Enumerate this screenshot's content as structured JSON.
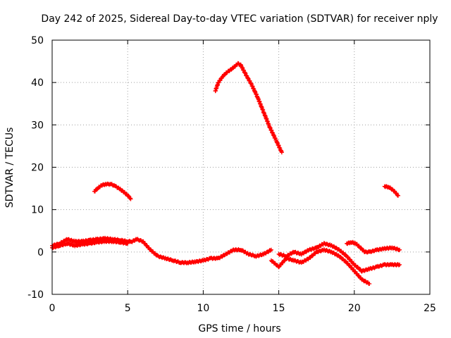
{
  "chart_data": {
    "type": "scatter",
    "title": "Day 242 of 2025, Sidereal Day-to-day VTEC variation (SDTVAR) for receiver nply",
    "xlabel": "GPS time / hours",
    "ylabel": "SDTVAR / TECUs",
    "xlim": [
      0,
      25
    ],
    "ylim": [
      -10,
      50
    ],
    "x_ticks": [
      0,
      5,
      10,
      15,
      20,
      25
    ],
    "y_ticks": [
      -10,
      0,
      10,
      20,
      30,
      40,
      50
    ],
    "x_tick_labels": [
      "0",
      "5",
      "10",
      "15",
      "20",
      "25"
    ],
    "y_tick_labels": [
      "-10",
      "0",
      "10",
      "20",
      "30",
      "40",
      "50"
    ],
    "grid": true,
    "legend": "none",
    "marker_color": "#ff0000",
    "series": [
      {
        "name": "arc-baseline-upper",
        "x": [
          0.0,
          0.5,
          1.0,
          1.5,
          2.0,
          2.5,
          3.0,
          3.5,
          4.0,
          4.5,
          5.0,
          5.3,
          5.6,
          6.0,
          6.5,
          7.0,
          7.5,
          8.0,
          8.5,
          9.0,
          9.5,
          10.0,
          10.5,
          11.0,
          11.5,
          12.0,
          12.5,
          13.0,
          13.5,
          14.0,
          14.5
        ],
        "y": [
          1.5,
          2.0,
          3.0,
          2.5,
          2.5,
          2.8,
          3.0,
          3.2,
          3.0,
          2.8,
          2.5,
          2.5,
          3.0,
          2.5,
          0.5,
          -1.0,
          -1.5,
          -2.0,
          -2.5,
          -2.5,
          -2.3,
          -2.0,
          -1.5,
          -1.5,
          -0.5,
          0.5,
          0.5,
          -0.5,
          -1.0,
          -0.5,
          0.5
        ]
      },
      {
        "name": "arc-baseline-lower",
        "x": [
          0.0,
          0.5,
          1.0,
          1.5,
          2.0,
          2.5,
          3.0,
          3.5,
          4.0,
          4.5,
          5.0
        ],
        "y": [
          1.0,
          1.5,
          2.0,
          1.5,
          1.8,
          2.0,
          2.3,
          2.5,
          2.5,
          2.3,
          2.0
        ]
      },
      {
        "name": "arc-morning-bump",
        "x": [
          2.8,
          3.0,
          3.3,
          3.6,
          3.9,
          4.2,
          4.5,
          4.8,
          5.1,
          5.2
        ],
        "y": [
          14.3,
          15.0,
          15.8,
          16.0,
          16.0,
          15.5,
          14.8,
          14.0,
          13.0,
          12.5
        ]
      },
      {
        "name": "arc-noon-peak",
        "x": [
          10.8,
          11.0,
          11.3,
          11.6,
          12.0,
          12.3,
          12.5,
          12.8,
          13.2,
          13.6,
          14.0,
          14.4,
          14.8,
          15.2
        ],
        "y": [
          38.0,
          40.0,
          41.5,
          42.5,
          43.5,
          44.5,
          44.0,
          42.0,
          39.5,
          36.5,
          33.0,
          29.5,
          26.5,
          23.5
        ]
      },
      {
        "name": "arc-afternoon-low",
        "x": [
          14.5,
          15.0,
          15.5,
          16.0,
          16.5,
          17.0,
          17.5,
          18.0,
          18.5,
          19.0,
          19.5,
          20.0,
          20.5,
          21.0
        ],
        "y": [
          -2.0,
          -3.5,
          -1.5,
          -2.0,
          -2.5,
          -1.5,
          0.0,
          0.5,
          0.0,
          -1.0,
          -2.5,
          -4.5,
          -6.5,
          -7.5
        ]
      },
      {
        "name": "arc-evening-mid",
        "x": [
          15.0,
          15.5,
          16.0,
          16.5,
          17.0,
          17.5,
          18.0,
          18.5,
          19.0,
          19.5,
          20.0,
          20.5,
          21.0,
          21.5,
          22.0,
          22.5,
          23.0
        ],
        "y": [
          -0.5,
          -1.0,
          0.0,
          -0.5,
          0.5,
          1.0,
          2.0,
          1.5,
          0.5,
          -1.0,
          -3.0,
          -4.5,
          -4.0,
          -3.5,
          -3.0,
          -3.0,
          -3.0
        ]
      },
      {
        "name": "arc-evening-upper",
        "x": [
          19.5,
          19.8,
          20.1,
          20.4,
          20.7,
          21.0,
          21.5,
          22.0,
          22.5,
          23.0
        ],
        "y": [
          2.0,
          2.3,
          2.0,
          1.0,
          0.0,
          0.0,
          0.5,
          0.8,
          1.0,
          0.5
        ]
      },
      {
        "name": "arc-late-night",
        "x": [
          22.0,
          22.3,
          22.6,
          22.9
        ],
        "y": [
          15.5,
          15.3,
          14.5,
          13.3
        ]
      }
    ]
  }
}
